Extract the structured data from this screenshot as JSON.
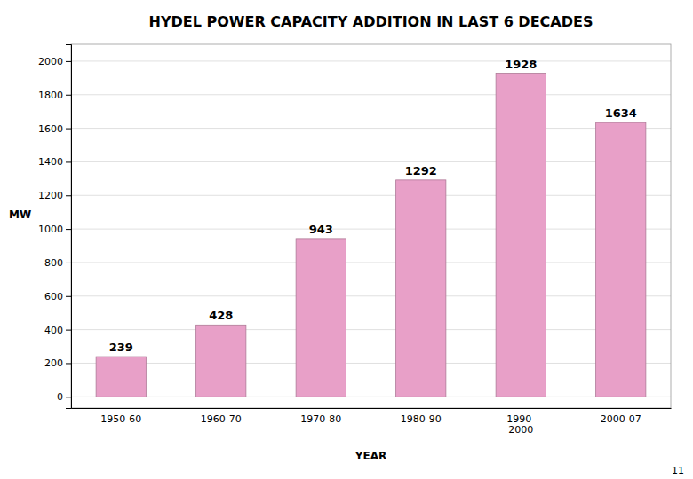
{
  "chart_data": {
    "type": "bar",
    "title": "HYDEL POWER CAPACITY ADDITION IN LAST 6 DECADES",
    "categories": [
      "1950-60",
      "1960-70",
      "1970-80",
      "1980-90",
      "1990-\n2000",
      "2000-07"
    ],
    "values": [
      239,
      428,
      943,
      1292,
      1928,
      1634
    ],
    "color": "#e8a0c8",
    "xlabel": "YEAR",
    "ylabel": "MW",
    "ylim": [
      -67.2,
      2100
    ],
    "yticks": [
      0,
      200,
      400,
      600,
      800,
      1000,
      1200,
      1400,
      1600,
      1800,
      2000
    ],
    "grid": true,
    "data_labels": true,
    "annotations": [
      "11"
    ]
  }
}
